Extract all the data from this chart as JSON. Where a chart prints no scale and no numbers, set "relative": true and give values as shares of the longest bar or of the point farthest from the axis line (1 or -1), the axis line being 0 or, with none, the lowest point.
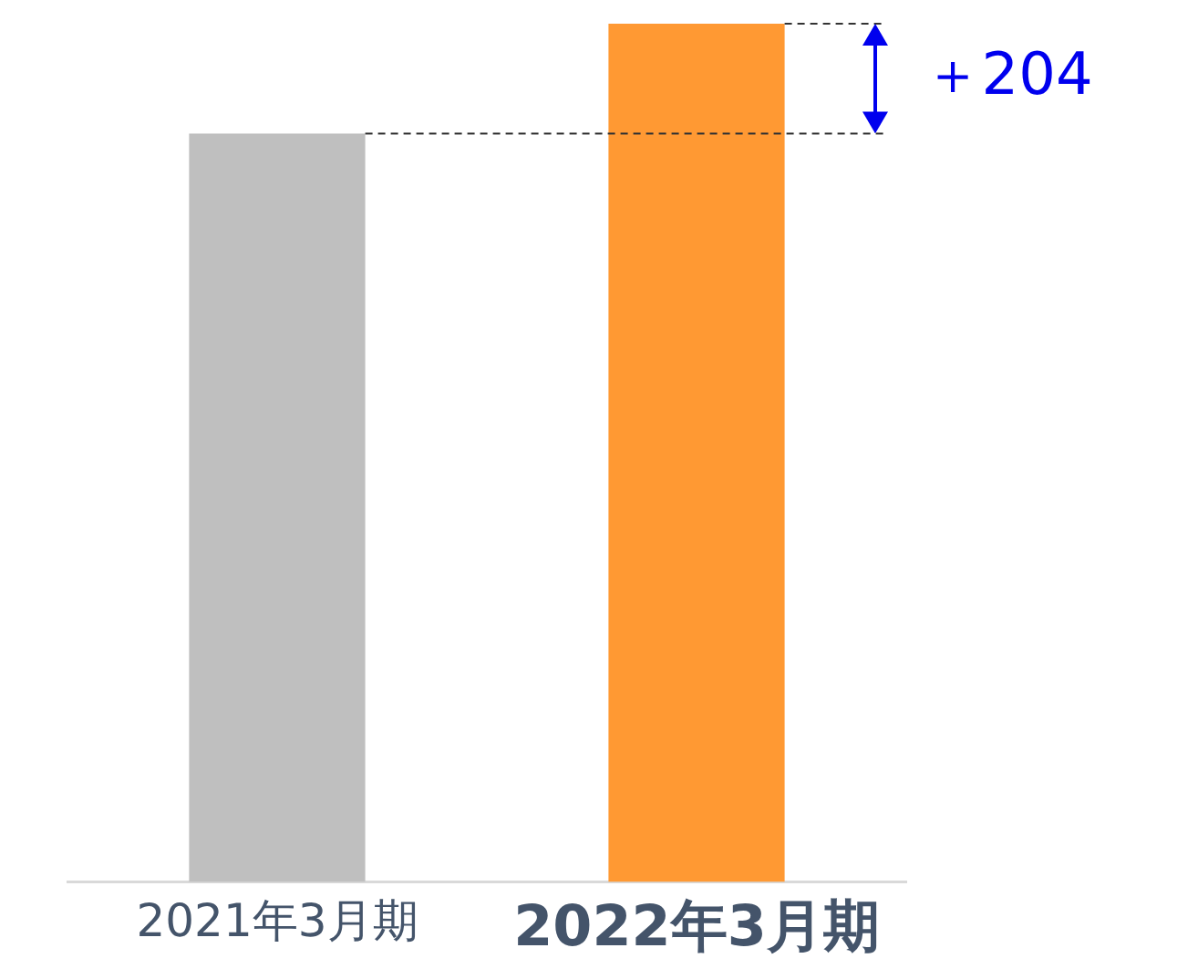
{
  "chart_data": {
    "type": "bar",
    "categories": [
      "2021年3月期",
      "2022年3月期"
    ],
    "values": [
      0.872,
      1
    ],
    "colors": [
      "#bfbfbf",
      "#ff9933"
    ],
    "relative": true,
    "annotations": [
      "＋204"
    ]
  }
}
